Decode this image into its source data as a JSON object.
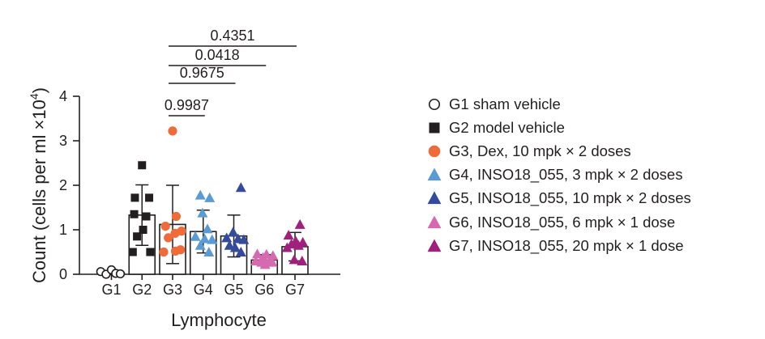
{
  "chart_data": {
    "type": "bar",
    "title": "",
    "xlabel": "Lymphocyte",
    "ylabel": "Count (cells per ml ×10",
    "ylabel_exponent": "4",
    "ylabel_close": ")",
    "ylim": [
      0,
      4
    ],
    "yticks": [
      "0",
      "1",
      "2",
      "3",
      "4"
    ],
    "categories": [
      "G1",
      "G2",
      "G3",
      "G4",
      "G5",
      "G6",
      "G7"
    ],
    "means": [
      0.03,
      1.33,
      1.12,
      0.96,
      0.86,
      0.32,
      0.62
    ],
    "sd": [
      0.03,
      0.68,
      0.88,
      0.48,
      0.47,
      0.12,
      0.32
    ],
    "series": [
      {
        "name": "G1 sham vehicle",
        "marker": "circle-open",
        "color": "#231f20",
        "points": [
          [
            -0.3,
            0.06
          ],
          [
            -0.15,
            0.0
          ],
          [
            0.0,
            0.1
          ],
          [
            0.12,
            0.02
          ],
          [
            0.25,
            0.01
          ]
        ]
      },
      {
        "name": "G2 model vehicle",
        "marker": "square",
        "color": "#231f20",
        "points": [
          [
            0.0,
            2.45
          ],
          [
            -0.2,
            1.72
          ],
          [
            0.2,
            1.72
          ],
          [
            -0.22,
            1.35
          ],
          [
            0.12,
            1.3
          ],
          [
            0.03,
            1.0
          ],
          [
            -0.14,
            0.85
          ],
          [
            -0.26,
            0.5
          ],
          [
            0.23,
            0.5
          ]
        ]
      },
      {
        "name": "G3, Dex, 10 mpk × 2 doses",
        "marker": "circle",
        "color": "#ef6b3a",
        "points": [
          [
            0.0,
            3.22
          ],
          [
            0.1,
            1.3
          ],
          [
            -0.2,
            1.08
          ],
          [
            0.25,
            0.97
          ],
          [
            0.07,
            0.92
          ],
          [
            -0.12,
            0.82
          ],
          [
            -0.25,
            0.5
          ],
          [
            0.08,
            0.52
          ],
          [
            0.22,
            0.55
          ]
        ]
      },
      {
        "name": "G4, INSO18_055, 3 mpk × 2 doses",
        "marker": "triangle",
        "color": "#5b9bd5",
        "points": [
          [
            -0.08,
            1.78
          ],
          [
            0.18,
            1.72
          ],
          [
            -0.02,
            1.38
          ],
          [
            0.12,
            1.02
          ],
          [
            -0.22,
            0.85
          ],
          [
            0.04,
            0.8
          ],
          [
            0.25,
            0.78
          ],
          [
            -0.08,
            0.65
          ],
          [
            0.16,
            0.5
          ]
        ]
      },
      {
        "name": "G5, INSO18_055, 10 mpk × 2 doses",
        "marker": "triangle",
        "color": "#344b9b",
        "points": [
          [
            0.2,
            1.95
          ],
          [
            -0.02,
            0.95
          ],
          [
            -0.2,
            0.82
          ],
          [
            0.12,
            0.8
          ],
          [
            0.28,
            0.78
          ],
          [
            -0.12,
            0.65
          ],
          [
            0.04,
            0.6
          ],
          [
            0.2,
            0.5
          ]
        ]
      },
      {
        "name": "G6, INSO18_055, 6 mpk × 1 dose",
        "marker": "triangle",
        "color": "#d66ab0",
        "points": [
          [
            -0.2,
            0.46
          ],
          [
            0.06,
            0.45
          ],
          [
            0.24,
            0.42
          ],
          [
            -0.04,
            0.38
          ],
          [
            0.15,
            0.3
          ],
          [
            -0.24,
            0.3
          ],
          [
            -0.08,
            0.27
          ],
          [
            0.22,
            0.27
          ],
          [
            0.02,
            0.22
          ]
        ]
      },
      {
        "name": "G7, INSO18_055, 20 mpk × 1 dose",
        "marker": "triangle",
        "color": "#a0207e",
        "points": [
          [
            0.14,
            1.12
          ],
          [
            -0.18,
            0.88
          ],
          [
            0.02,
            0.75
          ],
          [
            0.22,
            0.72
          ],
          [
            -0.1,
            0.68
          ],
          [
            0.1,
            0.65
          ],
          [
            -0.22,
            0.6
          ],
          [
            -0.02,
            0.33
          ],
          [
            0.2,
            0.3
          ]
        ]
      }
    ],
    "comparisons": [
      {
        "from": "G3",
        "to": "G7",
        "label": "0.4351"
      },
      {
        "from": "G3",
        "to": "G6",
        "label": "0.0418"
      },
      {
        "from": "G3",
        "to": "G5",
        "label": "0.9675"
      },
      {
        "from": "G3",
        "to": "G4",
        "label": "0.9987"
      }
    ],
    "legend_position": "right"
  }
}
